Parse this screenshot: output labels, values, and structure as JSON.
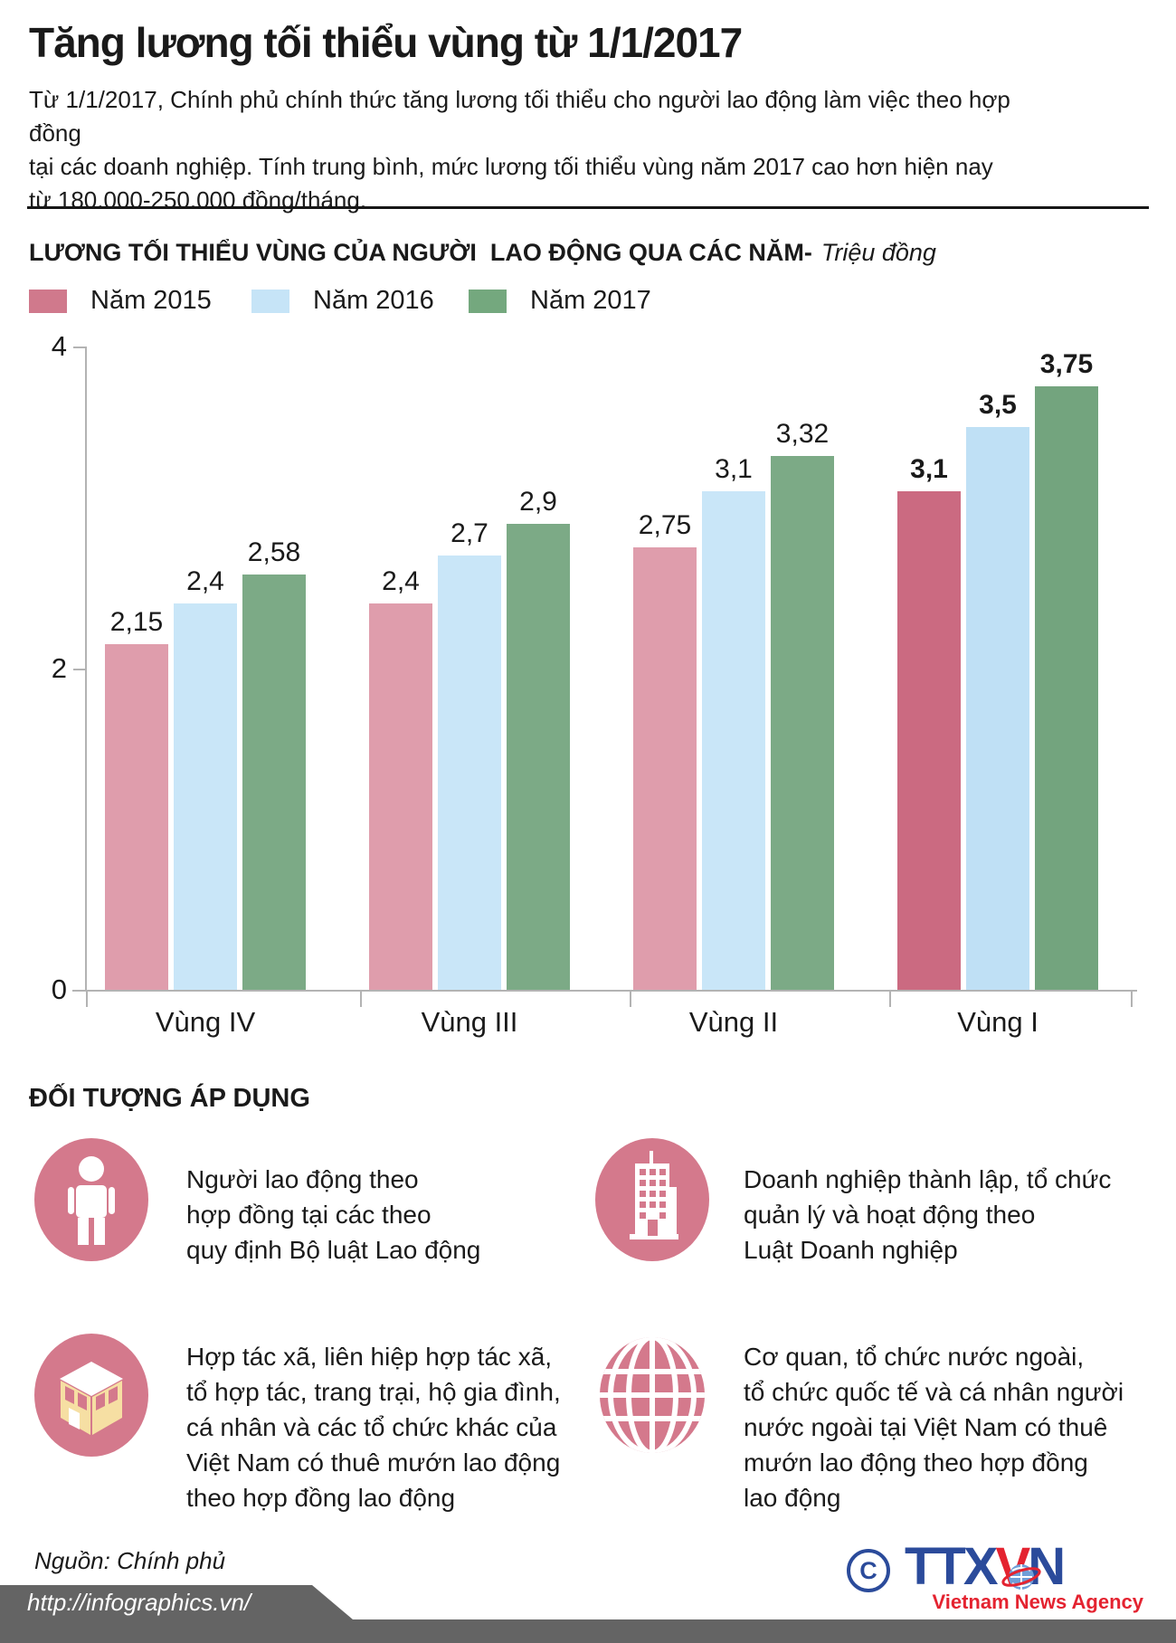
{
  "header": {
    "title": "Tăng lương tối thiểu vùng từ 1/1/2017",
    "intro": [
      "Từ 1/1/2017, Chính phủ chính thức tăng lương tối thiểu cho người lao động làm việc theo hợp đồng",
      "tại các doanh nghiệp. Tính trung bình, mức lương tối thiểu vùng năm 2017 cao hơn hiện nay",
      "từ 180.000-250.000 đồng/tháng."
    ]
  },
  "chart_data": {
    "type": "bar",
    "title": "LƯƠNG TỐI THIỂU VÙNG CỦA NGƯỜI  LAO ĐỘNG QUA CÁC NĂM-",
    "unit_label": "Triệu đồng",
    "categories": [
      "Vùng IV",
      "Vùng III",
      "Vùng II",
      "Vùng I"
    ],
    "series": [
      {
        "name": "Năm 2015",
        "values": [
          2.15,
          2.4,
          2.75,
          3.1
        ],
        "labels": [
          "2,15",
          "2,4",
          "2,75",
          "3,1"
        ],
        "color": "#df9dac",
        "highlight_color": "#cb6a81",
        "legend_color": "#d0798c"
      },
      {
        "name": "Năm 2016",
        "values": [
          2.4,
          2.7,
          3.1,
          3.5
        ],
        "labels": [
          "2,4",
          "2,7",
          "3,1",
          "3,5"
        ],
        "color": "#c9e6f8",
        "highlight_color": "#bfe0f5",
        "legend_color": "#c6e4f7"
      },
      {
        "name": "Năm 2017",
        "values": [
          2.58,
          2.9,
          3.32,
          3.75
        ],
        "labels": [
          "2,58",
          "2,9",
          "3,32",
          "3,75"
        ],
        "color": "#7caa86",
        "highlight_color": "#73a47e",
        "legend_color": "#74a87e"
      }
    ],
    "highlight_category": "Vùng I",
    "ylim": [
      0,
      4
    ],
    "yticks": [
      0,
      2,
      4
    ],
    "grid": false,
    "legend_position": "top"
  },
  "subjects": {
    "heading": "ĐỐI TƯỢNG ÁP DỤNG",
    "items": [
      {
        "icon": "worker-icon",
        "lines": [
          "Người lao động theo",
          "hợp đồng tại các theo",
          "quy định Bộ luật Lao động"
        ]
      },
      {
        "icon": "building-icon",
        "lines": [
          "Doanh nghiệp thành lập, tổ chức",
          "quản lý và hoạt động theo",
          "Luật Doanh nghiệp"
        ]
      },
      {
        "icon": "house-icon",
        "lines": [
          "Hợp tác xã, liên hiệp hợp tác xã,",
          "tổ hợp tác, trang trại, hộ gia đình,",
          "cá nhân và các tổ chức khác của",
          "Việt Nam có thuê mướn lao động",
          "theo hợp đồng lao động"
        ]
      },
      {
        "icon": "globe-icon",
        "lines": [
          "Cơ quan, tổ chức nước ngoài,",
          "tổ chức quốc tế và cá nhân người",
          "nước ngoài tại Việt Nam có thuê",
          "mướn lao động theo hợp đồng",
          "lao động"
        ]
      }
    ]
  },
  "footer": {
    "source": "Nguồn: Chính phủ",
    "copyright": "C",
    "logo_ttx": "TTX",
    "logo_v": "V",
    "logo_n": "N",
    "agency": "Vietnam News Agency",
    "url": "http://infographics.vn/"
  },
  "colors": {
    "accent_pink": "#d4798c",
    "cream": "#f6dfa3",
    "axis_gray": "#b3b3b3",
    "logo_blue": "#2b4b9b",
    "logo_red": "#e42330",
    "footer_gray": "#646464",
    "text": "#1a1a1a"
  }
}
